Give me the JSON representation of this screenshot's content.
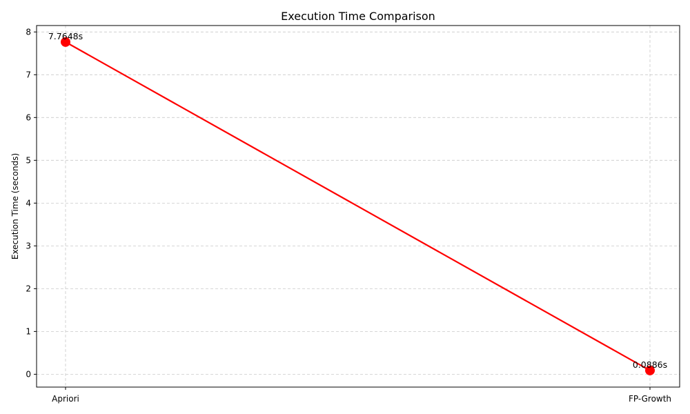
{
  "chart_data": {
    "type": "line",
    "title": "Execution Time Comparison",
    "xlabel": "",
    "ylabel": "Execution Time (seconds)",
    "categories": [
      "Apriori",
      "FP-Growth"
    ],
    "series": [
      {
        "values": [
          7.7648,
          0.0886
        ],
        "data_labels": [
          "7.7648s",
          "0.0886s"
        ],
        "color": "#ff0000",
        "marker": "circle"
      }
    ],
    "ylim": [
      -0.3,
      8.15
    ],
    "yticks": [
      0,
      1,
      2,
      3,
      4,
      5,
      6,
      7,
      8
    ],
    "grid": true,
    "legend": "none"
  }
}
